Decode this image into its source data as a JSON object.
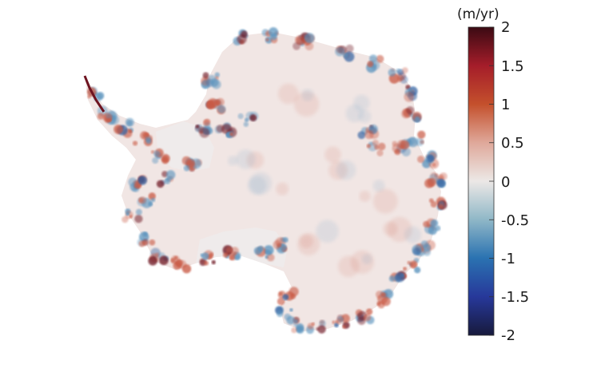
{
  "colorbar": {
    "unit": "(m/yr)",
    "ticks": [
      "2",
      "1.5",
      "1",
      "0.5",
      "0",
      "-0.5",
      "-1",
      "-1.5",
      "-2"
    ],
    "range": [
      -2,
      2
    ],
    "colormap": [
      {
        "value": 2.0,
        "color": "#3b0a13"
      },
      {
        "value": 1.5,
        "color": "#a51d2a"
      },
      {
        "value": 1.0,
        "color": "#c4502c"
      },
      {
        "value": 0.5,
        "color": "#dfa89a"
      },
      {
        "value": 0.0,
        "color": "#ece8e6"
      },
      {
        "value": -0.5,
        "color": "#8fb7c7"
      },
      {
        "value": -1.0,
        "color": "#2a72b1"
      },
      {
        "value": -1.5,
        "color": "#27389a"
      },
      {
        "value": -2.0,
        "color": "#171a3c"
      }
    ]
  },
  "map": {
    "subject": "antarctica-ice-rate-map",
    "land_color": "#f1e6e4",
    "shelf_color": "#efebeb",
    "positive_color": "#c95a45",
    "negative_color": "#5a93bd",
    "extreme_positive_color": "#6e1320",
    "extreme_negative_color": "#2d5fa0"
  }
}
